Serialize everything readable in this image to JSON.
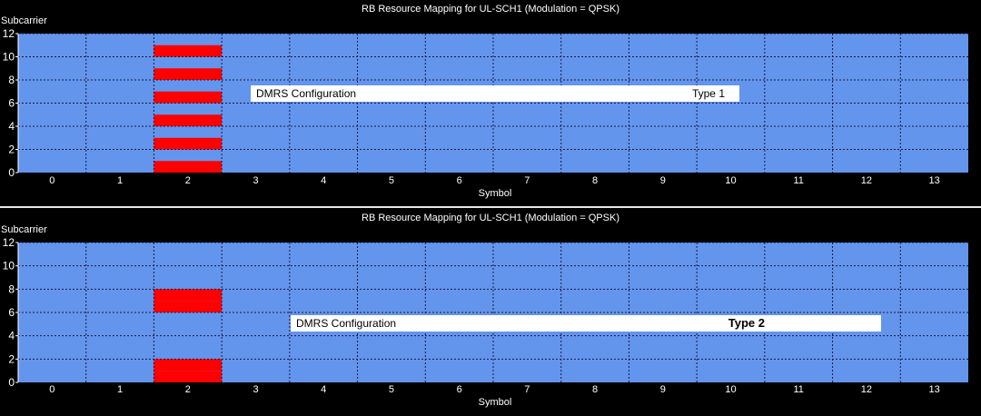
{
  "chart_data": [
    {
      "type": "heatmap",
      "title": "RB Resource Mapping for UL-SCH1 (Modulation = QPSK)",
      "xlabel": "Symbol",
      "ylabel": "Subcarrier",
      "xlim": [
        0,
        13
      ],
      "ylim": [
        0,
        12
      ],
      "x_ticks": [
        "0",
        "1",
        "2",
        "3",
        "4",
        "5",
        "6",
        "7",
        "8",
        "9",
        "10",
        "11",
        "12",
        "13"
      ],
      "y_ticks": [
        "0",
        "2",
        "4",
        "6",
        "8",
        "10",
        "12"
      ],
      "grid": true,
      "background_color": "#6495ed",
      "dmrs_color": "#ff0000",
      "dmrs_cells": [
        {
          "symbol": 2,
          "subcarrier": 0
        },
        {
          "symbol": 2,
          "subcarrier": 2
        },
        {
          "symbol": 2,
          "subcarrier": 4
        },
        {
          "symbol": 2,
          "subcarrier": 6
        },
        {
          "symbol": 2,
          "subcarrier": 8
        },
        {
          "symbol": 2,
          "subcarrier": 10
        }
      ],
      "annotation": {
        "label": "DMRS Configuration",
        "value": "Type 1",
        "bold": false
      }
    },
    {
      "type": "heatmap",
      "title": "RB Resource Mapping for UL-SCH1 (Modulation = QPSK)",
      "xlabel": "Symbol",
      "ylabel": "Subcarrier",
      "xlim": [
        0,
        13
      ],
      "ylim": [
        0,
        12
      ],
      "x_ticks": [
        "0",
        "1",
        "2",
        "3",
        "4",
        "5",
        "6",
        "7",
        "8",
        "9",
        "10",
        "11",
        "12",
        "13"
      ],
      "y_ticks": [
        "0",
        "2",
        "4",
        "6",
        "8",
        "10",
        "12"
      ],
      "grid": true,
      "background_color": "#6495ed",
      "dmrs_color": "#ff0000",
      "dmrs_cells": [
        {
          "symbol": 2,
          "subcarrier": 0
        },
        {
          "symbol": 2,
          "subcarrier": 1
        },
        {
          "symbol": 2,
          "subcarrier": 6
        },
        {
          "symbol": 2,
          "subcarrier": 7
        }
      ],
      "annotation": {
        "label": "DMRS Configuration",
        "value": "Type 2",
        "bold": true
      }
    }
  ]
}
